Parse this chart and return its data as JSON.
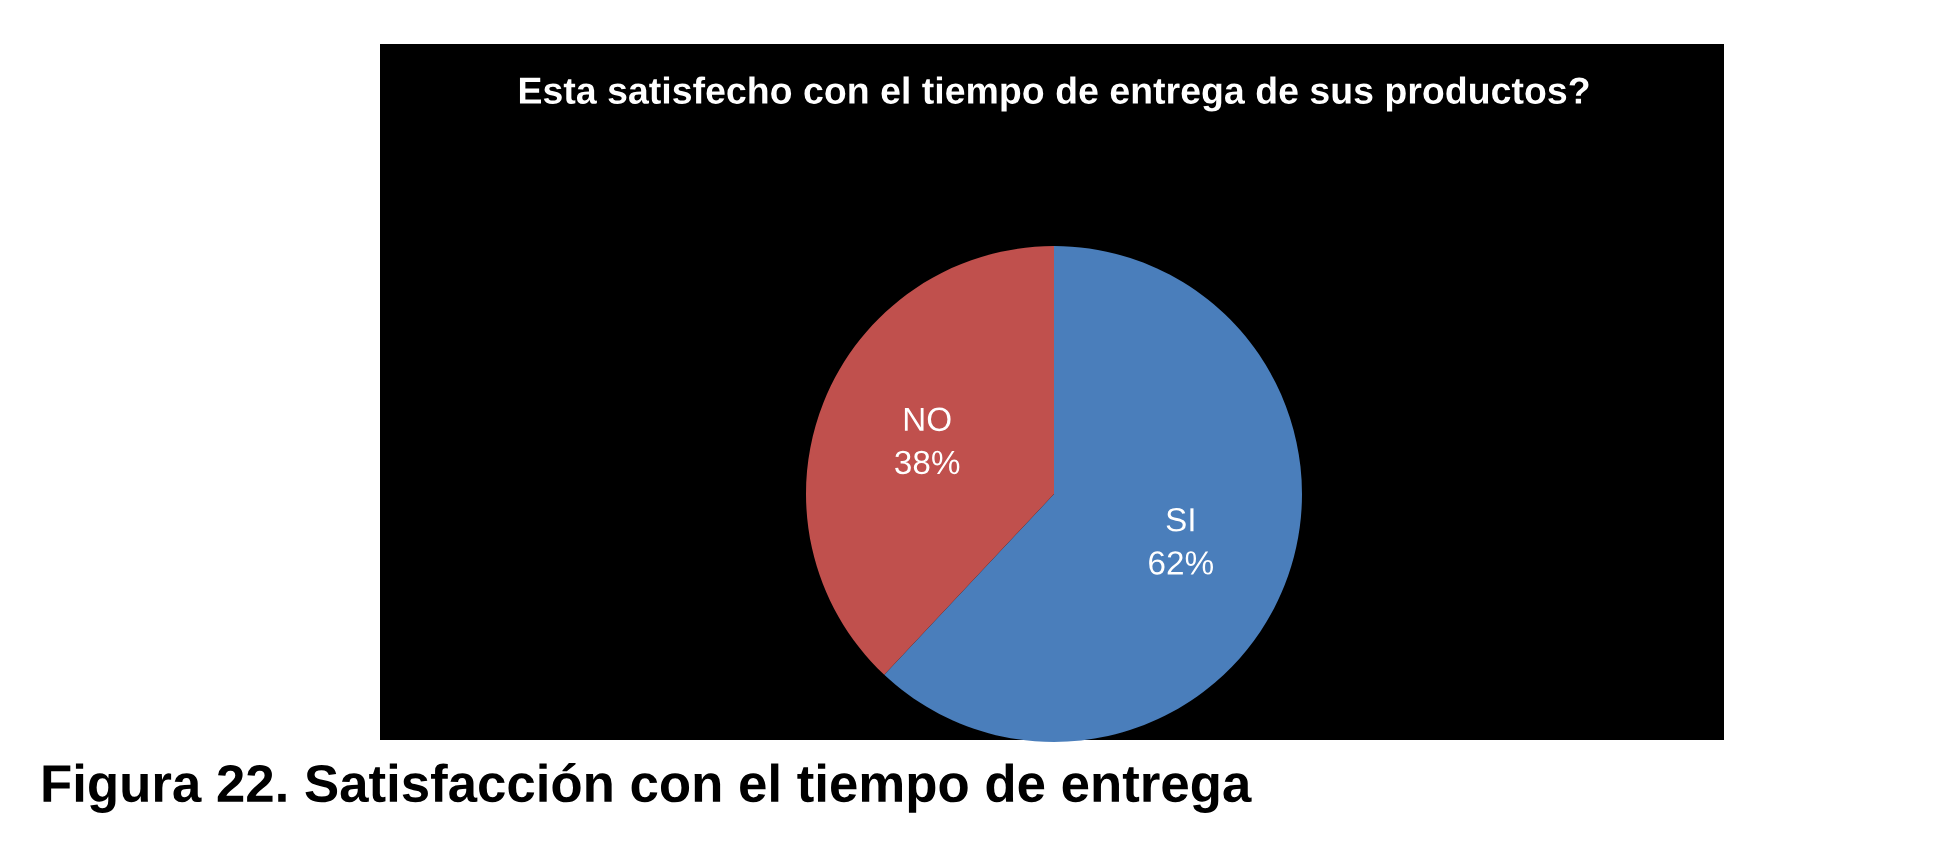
{
  "chart_data": {
    "type": "pie",
    "title": "Esta satisfecho con el tiempo de entrega de sus productos?",
    "categories": [
      "SI",
      "NO"
    ],
    "values": [
      62,
      38
    ],
    "value_labels": [
      "62%",
      "38%"
    ],
    "colors": [
      "#4a7ebb",
      "#c0504d"
    ],
    "annotations": [
      "Figura 22. Satisfacción con el tiempo de entrega"
    ]
  }
}
